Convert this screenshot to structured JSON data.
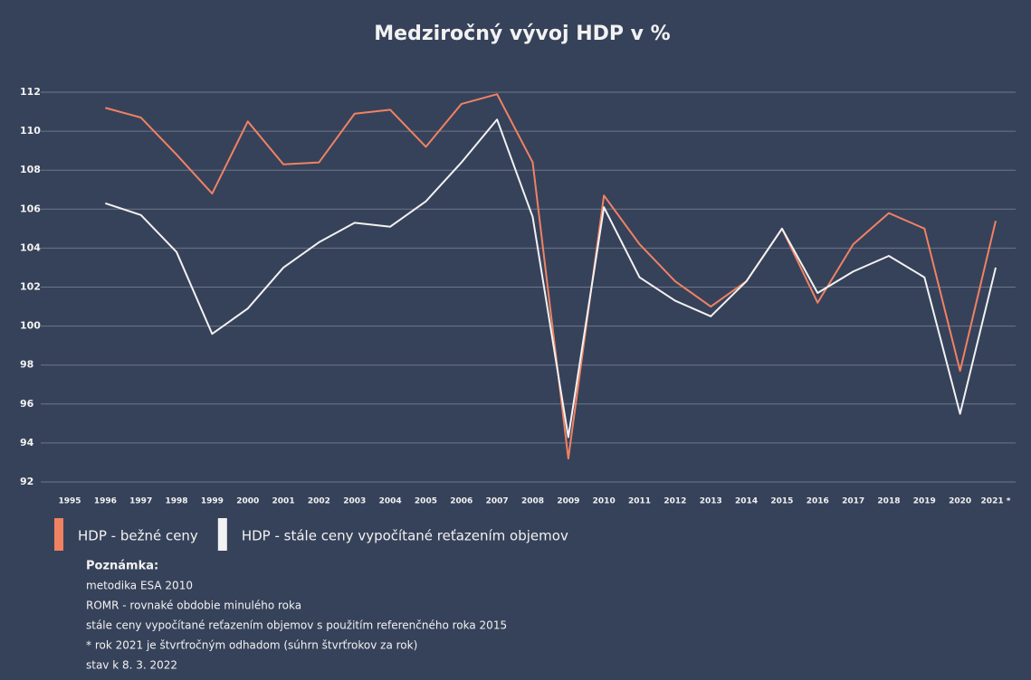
{
  "chart_data": {
    "type": "line",
    "title": "Medziročný vývoj HDP v %",
    "categories": [
      "1995",
      "1996",
      "1997",
      "1998",
      "1999",
      "2000",
      "2001",
      "2002",
      "2003",
      "2004",
      "2005",
      "2006",
      "2007",
      "2008",
      "2009",
      "2010",
      "2011",
      "2012",
      "2013",
      "2014",
      "2015",
      "2016",
      "2017",
      "2018",
      "2019",
      "2020",
      "2021 *"
    ],
    "series": [
      {
        "name": "HDP - bežné ceny",
        "color": "#f08263",
        "values": [
          null,
          111.2,
          110.7,
          108.8,
          106.8,
          110.5,
          108.3,
          108.4,
          110.9,
          111.1,
          109.2,
          111.4,
          111.9,
          108.4,
          93.2,
          106.7,
          104.2,
          102.3,
          101.0,
          102.3,
          105.0,
          101.2,
          104.2,
          105.8,
          105.0,
          97.7,
          105.4
        ]
      },
      {
        "name": "HDP - stále ceny vypočítané reťazením objemov",
        "color": "#f2f2f2",
        "values": [
          null,
          106.3,
          105.7,
          103.8,
          99.6,
          100.9,
          103.0,
          104.3,
          105.3,
          105.1,
          106.4,
          108.4,
          110.6,
          105.6,
          94.3,
          106.1,
          102.5,
          101.3,
          100.5,
          102.3,
          105.0,
          101.7,
          102.8,
          103.6,
          102.5,
          95.5,
          103.0
        ]
      }
    ],
    "ylim": [
      92,
      112
    ],
    "yticks": [
      92,
      94,
      96,
      98,
      100,
      102,
      104,
      106,
      108,
      110,
      112
    ],
    "grid": true,
    "legend": "bottom"
  },
  "notes": {
    "title": "Poznámka:",
    "lines": [
      "metodika ESA 2010",
      "ROMR  - rovnaké obdobie minulého roka",
      "stále ceny vypočítané reťazením objemov s použitím referenčného roka 2015",
      "* rok 2021 je štvrťročným odhadom (súhrn štvrťrokov za rok)",
      "stav k 8. 3. 2022"
    ]
  }
}
